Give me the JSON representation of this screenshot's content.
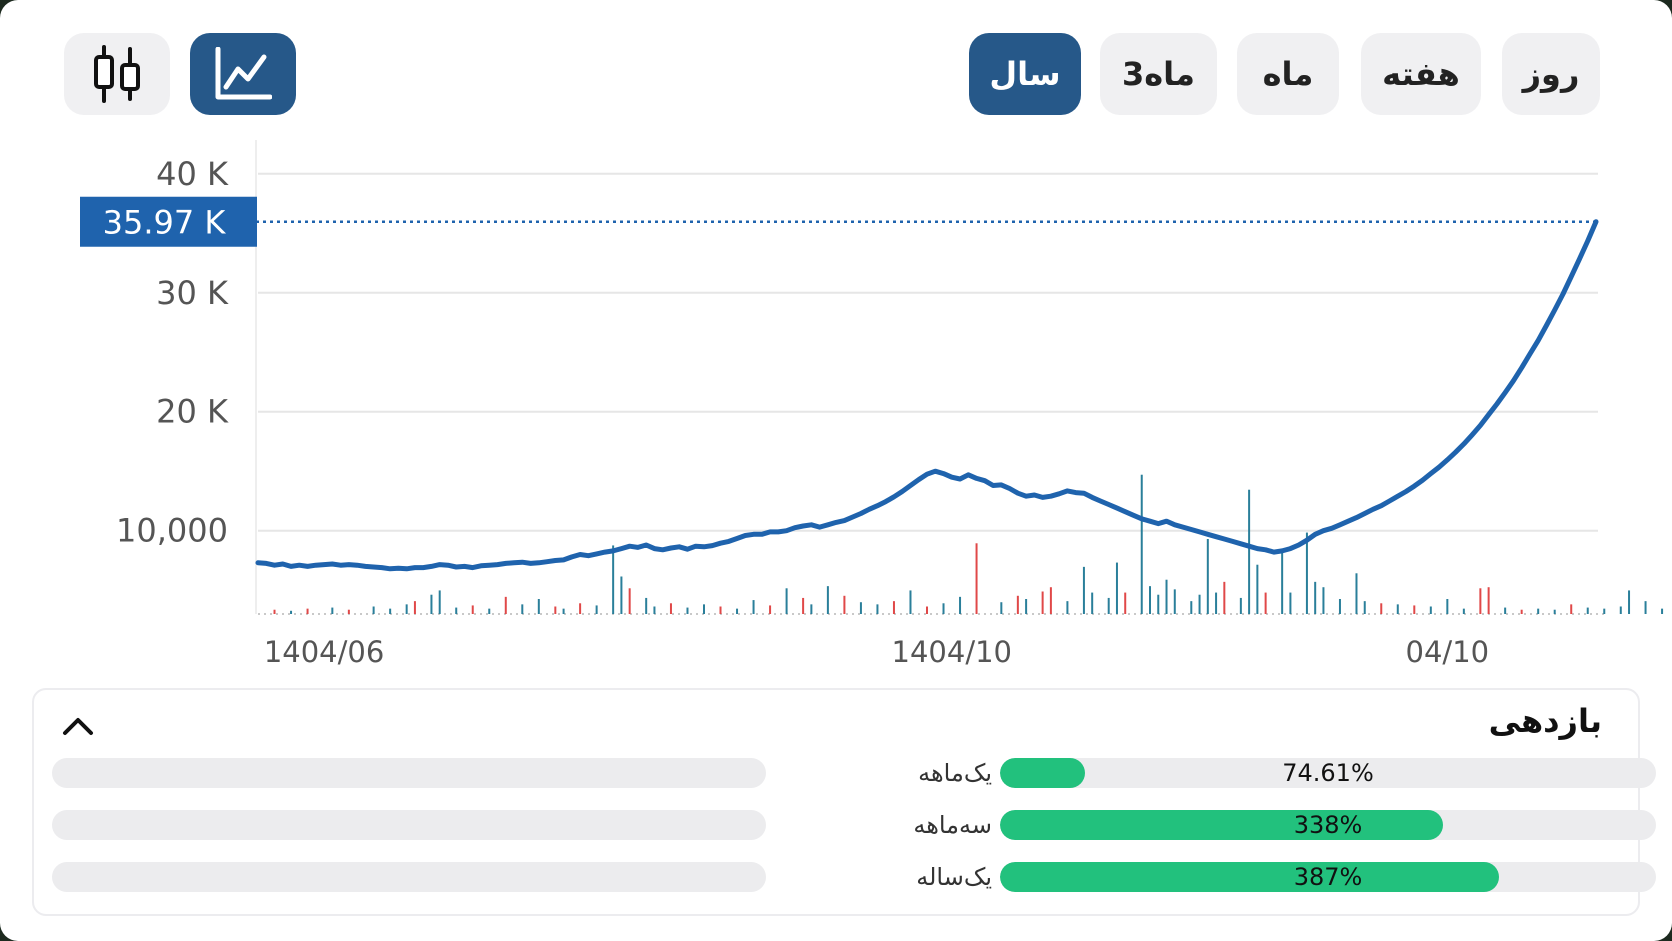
{
  "toolbar": {
    "periods": [
      {
        "id": "day",
        "label": "روز",
        "active": false
      },
      {
        "id": "week",
        "label": "هفته",
        "active": false
      },
      {
        "id": "month",
        "label": "ماه",
        "active": false
      },
      {
        "id": "three_month",
        "label": "3ماه",
        "active": false
      },
      {
        "id": "year",
        "label": "سال",
        "active": true
      }
    ],
    "chart_modes": [
      {
        "id": "line",
        "icon": "line-chart-icon",
        "active": true
      },
      {
        "id": "candle",
        "icon": "candlestick-icon",
        "active": false
      }
    ]
  },
  "colors": {
    "accent": "#265889",
    "line": "#1f63ad",
    "current_value_bg": "#1f63ad",
    "volume_up": "#2a7f9a",
    "volume_down": "#e04848",
    "progress": "#22c17d"
  },
  "chart_data": {
    "type": "line",
    "y_tick_labels": [
      "40 K",
      "30 K",
      "20 K",
      "10,000"
    ],
    "y_ticks": [
      40000,
      30000,
      20000,
      10000
    ],
    "ylim": [
      3000,
      42000
    ],
    "x_tick_labels": [
      "1404/06",
      "1404/10",
      "04/10"
    ],
    "x_tick_index": [
      8,
      84,
      144
    ],
    "current_value_label": "35.97 K",
    "current_value": 35970,
    "grid": true,
    "series": [
      {
        "values": [
          7300,
          7250,
          7100,
          7200,
          7000,
          7100,
          7000,
          7100,
          7150,
          7200,
          7100,
          7150,
          7100,
          7000,
          6950,
          6900,
          6800,
          6850,
          6800,
          6900,
          6900,
          7000,
          7150,
          7100,
          6950,
          7000,
          6900,
          7050,
          7100,
          7150,
          7250,
          7300,
          7350,
          7250,
          7300,
          7400,
          7500,
          7550,
          7800,
          8000,
          7900,
          8050,
          8200,
          8300,
          8500,
          8700,
          8600,
          8800,
          8500,
          8400,
          8550,
          8650,
          8450,
          8700,
          8650,
          8750,
          8950,
          9100,
          9350,
          9600,
          9700,
          9700,
          9900,
          9900,
          10000,
          10250,
          10400,
          10500,
          10300,
          10500,
          10700,
          10850,
          11150,
          11450,
          11800,
          12100,
          12450,
          12850,
          13300,
          13800,
          14300,
          14750,
          15000,
          14800,
          14500,
          14350,
          14700,
          14400,
          14200,
          13800,
          13850,
          13550,
          13150,
          12900,
          13000,
          12800,
          12900,
          13100,
          13350,
          13200,
          13150,
          12800,
          12500,
          12200,
          11900,
          11600,
          11300,
          11000,
          10800,
          10600,
          10800,
          10500,
          10300,
          10100,
          9900,
          9700,
          9500,
          9300,
          9100,
          8900,
          8700,
          8500,
          8400,
          8200,
          8300,
          8500,
          8800,
          9200,
          9700,
          10000,
          10200,
          10500,
          10800,
          11100,
          11450,
          11800,
          12100,
          12500,
          12900,
          13300,
          13750,
          14250,
          14800,
          15350,
          15950,
          16600,
          17300,
          18050,
          18850,
          19750,
          20650,
          21600,
          22600,
          23700,
          24850,
          26000,
          27250,
          28550,
          29900,
          31350,
          32850,
          34350,
          35970
        ]
      }
    ],
    "volume": [
      {
        "i": 2,
        "v": 400,
        "d": 1
      },
      {
        "i": 4,
        "v": 300,
        "d": 0
      },
      {
        "i": 6,
        "v": 500,
        "d": 1
      },
      {
        "i": 9,
        "v": 600,
        "d": 0
      },
      {
        "i": 11,
        "v": 400,
        "d": 1
      },
      {
        "i": 14,
        "v": 700,
        "d": 0
      },
      {
        "i": 16,
        "v": 500,
        "d": 0
      },
      {
        "i": 18,
        "v": 900,
        "d": 0
      },
      {
        "i": 19,
        "v": 1200,
        "d": 1
      },
      {
        "i": 21,
        "v": 1800,
        "d": 0
      },
      {
        "i": 22,
        "v": 2200,
        "d": 0
      },
      {
        "i": 24,
        "v": 600,
        "d": 0
      },
      {
        "i": 26,
        "v": 800,
        "d": 1
      },
      {
        "i": 28,
        "v": 500,
        "d": 0
      },
      {
        "i": 30,
        "v": 1600,
        "d": 1
      },
      {
        "i": 32,
        "v": 900,
        "d": 0
      },
      {
        "i": 34,
        "v": 1400,
        "d": 0
      },
      {
        "i": 36,
        "v": 700,
        "d": 1
      },
      {
        "i": 37,
        "v": 500,
        "d": 0
      },
      {
        "i": 39,
        "v": 1000,
        "d": 1
      },
      {
        "i": 41,
        "v": 800,
        "d": 0
      },
      {
        "i": 43,
        "v": 6400,
        "d": 0
      },
      {
        "i": 44,
        "v": 3500,
        "d": 0
      },
      {
        "i": 45,
        "v": 2400,
        "d": 1
      },
      {
        "i": 47,
        "v": 1500,
        "d": 0
      },
      {
        "i": 48,
        "v": 700,
        "d": 0
      },
      {
        "i": 50,
        "v": 1000,
        "d": 1
      },
      {
        "i": 52,
        "v": 600,
        "d": 0
      },
      {
        "i": 54,
        "v": 900,
        "d": 0
      },
      {
        "i": 56,
        "v": 700,
        "d": 1
      },
      {
        "i": 58,
        "v": 500,
        "d": 0
      },
      {
        "i": 60,
        "v": 1300,
        "d": 0
      },
      {
        "i": 62,
        "v": 800,
        "d": 1
      },
      {
        "i": 64,
        "v": 2400,
        "d": 0
      },
      {
        "i": 66,
        "v": 1500,
        "d": 1
      },
      {
        "i": 67,
        "v": 900,
        "d": 0
      },
      {
        "i": 69,
        "v": 2600,
        "d": 0
      },
      {
        "i": 71,
        "v": 1700,
        "d": 1
      },
      {
        "i": 73,
        "v": 1100,
        "d": 0
      },
      {
        "i": 75,
        "v": 900,
        "d": 0
      },
      {
        "i": 77,
        "v": 1200,
        "d": 1
      },
      {
        "i": 79,
        "v": 2200,
        "d": 0
      },
      {
        "i": 81,
        "v": 700,
        "d": 1
      },
      {
        "i": 83,
        "v": 1000,
        "d": 0
      },
      {
        "i": 85,
        "v": 1600,
        "d": 0
      },
      {
        "i": 87,
        "v": 6600,
        "d": 1
      },
      {
        "i": 90,
        "v": 1100,
        "d": 0
      },
      {
        "i": 92,
        "v": 1700,
        "d": 1
      },
      {
        "i": 93,
        "v": 1400,
        "d": 0
      },
      {
        "i": 95,
        "v": 2100,
        "d": 1
      },
      {
        "i": 96,
        "v": 2500,
        "d": 1
      },
      {
        "i": 98,
        "v": 1200,
        "d": 0
      },
      {
        "i": 100,
        "v": 4400,
        "d": 0
      },
      {
        "i": 101,
        "v": 2000,
        "d": 0
      },
      {
        "i": 103,
        "v": 1500,
        "d": 0
      },
      {
        "i": 104,
        "v": 4800,
        "d": 0
      },
      {
        "i": 105,
        "v": 2000,
        "d": 1
      },
      {
        "i": 107,
        "v": 13000,
        "d": 0
      },
      {
        "i": 108,
        "v": 2600,
        "d": 0
      },
      {
        "i": 109,
        "v": 1800,
        "d": 0
      },
      {
        "i": 110,
        "v": 3200,
        "d": 0
      },
      {
        "i": 111,
        "v": 2300,
        "d": 0
      },
      {
        "i": 113,
        "v": 1200,
        "d": 0
      },
      {
        "i": 114,
        "v": 1800,
        "d": 0
      },
      {
        "i": 115,
        "v": 7000,
        "d": 0
      },
      {
        "i": 116,
        "v": 2000,
        "d": 0
      },
      {
        "i": 117,
        "v": 3000,
        "d": 1
      },
      {
        "i": 119,
        "v": 1500,
        "d": 0
      },
      {
        "i": 120,
        "v": 11600,
        "d": 0
      },
      {
        "i": 121,
        "v": 4600,
        "d": 0
      },
      {
        "i": 122,
        "v": 2000,
        "d": 1
      },
      {
        "i": 124,
        "v": 6000,
        "d": 0
      },
      {
        "i": 125,
        "v": 2000,
        "d": 0
      },
      {
        "i": 127,
        "v": 7600,
        "d": 0
      },
      {
        "i": 128,
        "v": 3000,
        "d": 0
      },
      {
        "i": 129,
        "v": 2500,
        "d": 0
      },
      {
        "i": 131,
        "v": 1400,
        "d": 0
      },
      {
        "i": 133,
        "v": 3800,
        "d": 0
      },
      {
        "i": 134,
        "v": 1200,
        "d": 0
      },
      {
        "i": 136,
        "v": 1000,
        "d": 1
      },
      {
        "i": 138,
        "v": 900,
        "d": 0
      },
      {
        "i": 140,
        "v": 800,
        "d": 1
      },
      {
        "i": 142,
        "v": 700,
        "d": 0
      },
      {
        "i": 144,
        "v": 1400,
        "d": 0
      },
      {
        "i": 146,
        "v": 500,
        "d": 0
      },
      {
        "i": 148,
        "v": 2400,
        "d": 1
      },
      {
        "i": 149,
        "v": 2500,
        "d": 1
      },
      {
        "i": 151,
        "v": 600,
        "d": 0
      },
      {
        "i": 153,
        "v": 400,
        "d": 1
      },
      {
        "i": 155,
        "v": 500,
        "d": 0
      },
      {
        "i": 157,
        "v": 400,
        "d": 0
      },
      {
        "i": 159,
        "v": 900,
        "d": 1
      },
      {
        "i": 161,
        "v": 600,
        "d": 0
      },
      {
        "i": 163,
        "v": 500,
        "d": 0
      },
      {
        "i": 165,
        "v": 700,
        "d": 0
      },
      {
        "i": 166,
        "v": 2200,
        "d": 0
      },
      {
        "i": 168,
        "v": 1200,
        "d": 0
      },
      {
        "i": 170,
        "v": 500,
        "d": 0
      },
      {
        "i": 172,
        "v": 600,
        "d": 0
      }
    ]
  },
  "returns": {
    "title": "بازدهی",
    "rows": [
      {
        "label": "یک‌ماهه",
        "value": "74.61%",
        "fill": 0.13
      },
      {
        "label": "سه‌ماهه",
        "value": "338%",
        "fill": 0.675
      },
      {
        "label": "یک‌ساله",
        "value": "387%",
        "fill": 0.76
      }
    ]
  }
}
